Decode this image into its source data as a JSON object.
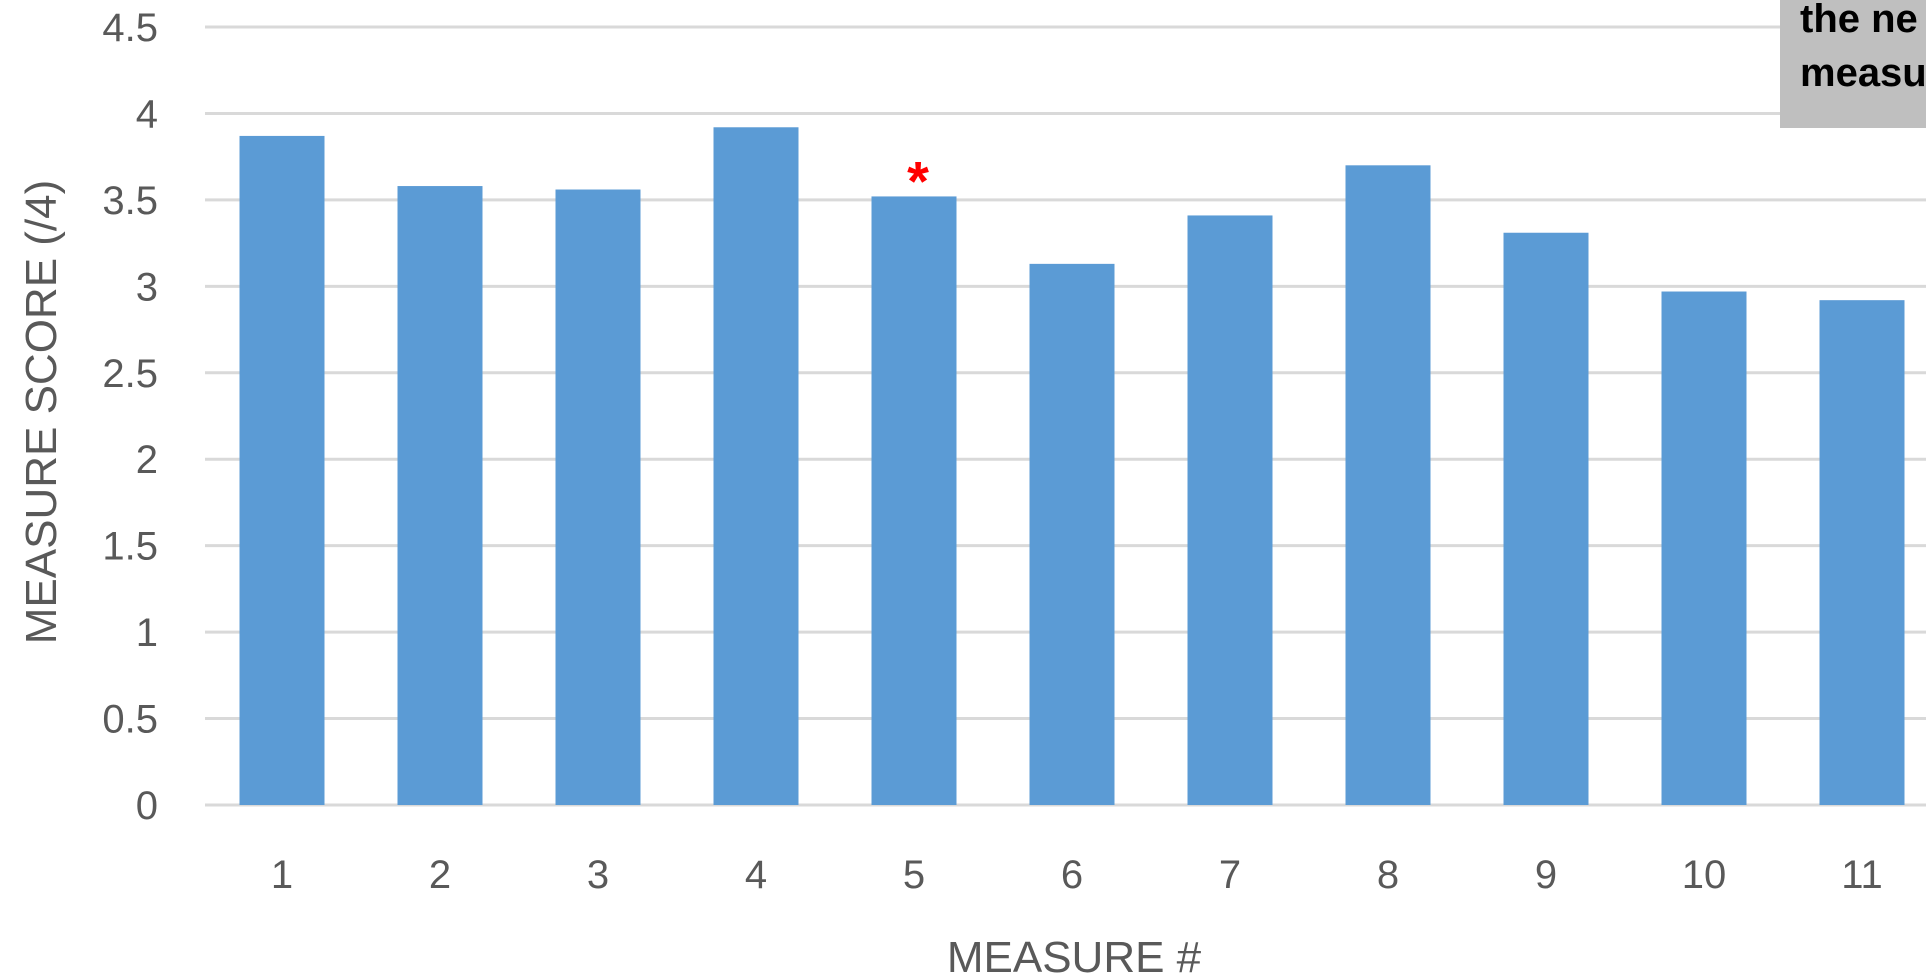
{
  "chart_data": {
    "type": "bar",
    "categories": [
      "1",
      "2",
      "3",
      "4",
      "5",
      "6",
      "7",
      "8",
      "9",
      "10",
      "11"
    ],
    "series": [
      {
        "values": [
          3.87,
          3.58,
          3.56,
          3.92,
          3.52,
          3.13,
          3.41,
          3.7,
          3.31,
          2.97,
          2.92
        ]
      }
    ],
    "xlabel": "MEASURE #",
    "ylabel": "MEASURE SCORE (/4)",
    "ylim": [
      0,
      4.5
    ],
    "yticks": [
      "0",
      "0.5",
      "1",
      "1.5",
      "2",
      "2.5",
      "3",
      "3.5",
      "4",
      "4.5"
    ],
    "grid": true,
    "colors": {
      "bar": "#5b9bd5",
      "marker": "#ff0000",
      "grid": "#d9d9d9",
      "text": "#595959"
    },
    "markers": [
      {
        "category": "5",
        "symbol": "*"
      }
    ],
    "annotation": {
      "lines": [
        "the ne",
        "measu"
      ]
    }
  }
}
